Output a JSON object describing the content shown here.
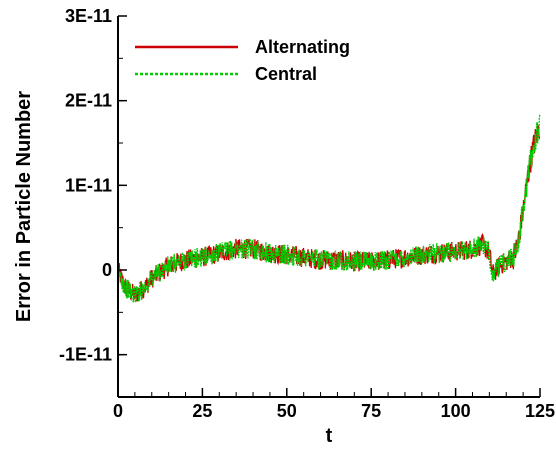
{
  "chart_data": {
    "type": "line",
    "xlabel": "t",
    "ylabel": "Error in Particle Number",
    "xlim": [
      0,
      125
    ],
    "ylim": [
      -1.5e-11,
      3e-11
    ],
    "x_ticks": [
      0,
      25,
      50,
      75,
      100,
      125
    ],
    "x_tick_labels": [
      "0",
      "25",
      "50",
      "75",
      "100",
      "125"
    ],
    "y_ticks": [
      -1e-11,
      0,
      1e-11,
      2e-11,
      3e-11
    ],
    "y_tick_labels": [
      "-1E-11",
      "0",
      "1E-11",
      "2E-11",
      "3E-11"
    ],
    "legend_position": "top-left",
    "grid": false,
    "series": [
      {
        "name": "Alternating",
        "color": "#cc0000",
        "style": "solid",
        "x": [
          0,
          2,
          5,
          8,
          10,
          15,
          20,
          25,
          30,
          35,
          40,
          45,
          50,
          55,
          60,
          65,
          70,
          75,
          80,
          85,
          90,
          95,
          100,
          105,
          108,
          110,
          111,
          113,
          115,
          117,
          118,
          119,
          120,
          121,
          122,
          123,
          124,
          125
        ],
        "y": [
          0,
          -2e-12,
          -3e-12,
          -2e-12,
          -1e-12,
          5e-13,
          1.2e-12,
          1.5e-12,
          2e-12,
          2.5e-12,
          2.5e-12,
          2e-12,
          1.8e-12,
          1.5e-12,
          1.2e-12,
          1.2e-12,
          1e-12,
          1e-12,
          1.2e-12,
          1.5e-12,
          1.8e-12,
          2e-12,
          2.2e-12,
          2.5e-12,
          3e-12,
          2e-12,
          -5e-13,
          5e-13,
          1e-12,
          1.5e-12,
          2.5e-12,
          4.5e-12,
          7e-12,
          1e-11,
          1.25e-11,
          1.45e-11,
          1.6e-11,
          1.7e-11
        ],
        "noise_amplitude": 1.2e-12
      },
      {
        "name": "Central",
        "color": "#00cc00",
        "style": "dotted",
        "x": [
          0,
          2,
          5,
          8,
          10,
          15,
          20,
          25,
          30,
          35,
          40,
          45,
          50,
          55,
          60,
          65,
          70,
          75,
          80,
          85,
          90,
          95,
          100,
          105,
          108,
          110,
          111,
          113,
          115,
          117,
          118,
          119,
          120,
          121,
          122,
          123,
          124,
          125
        ],
        "y": [
          0,
          -2e-12,
          -3e-12,
          -2e-12,
          -1e-12,
          5e-13,
          1.2e-12,
          1.5e-12,
          2e-12,
          2.5e-12,
          2.5e-12,
          2e-12,
          1.8e-12,
          1.5e-12,
          1.2e-12,
          1.2e-12,
          1e-12,
          1e-12,
          1.2e-12,
          1.5e-12,
          1.8e-12,
          2e-12,
          2.2e-12,
          2.5e-12,
          3e-12,
          2e-12,
          -5e-13,
          5e-13,
          1e-12,
          1.5e-12,
          2.5e-12,
          4.5e-12,
          7e-12,
          1e-11,
          1.25e-11,
          1.45e-11,
          1.6e-11,
          1.7e-11
        ],
        "noise_amplitude": 1.2e-12
      }
    ]
  }
}
